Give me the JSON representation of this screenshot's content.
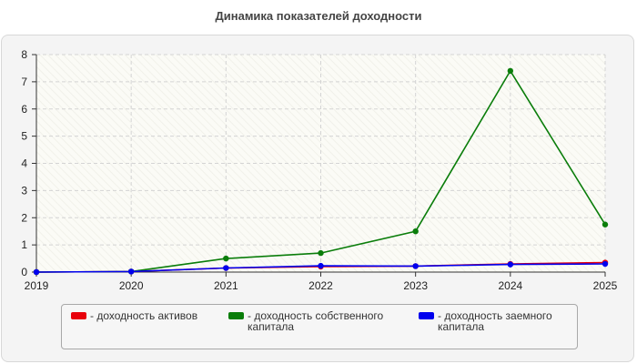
{
  "chart_data": {
    "type": "line",
    "title": "Динамика показателей доходности",
    "x": [
      "2019",
      "2020",
      "2021",
      "2022",
      "2023",
      "2024",
      "2025"
    ],
    "y_ticks": [
      "0",
      "1",
      "2",
      "3",
      "4",
      "5",
      "6",
      "7",
      "8"
    ],
    "ylim": [
      0,
      8
    ],
    "grid": true,
    "legend_position": "bottom",
    "series": [
      {
        "name": "- доходность активов",
        "color": "#e8000b",
        "values": [
          0,
          0.02,
          0.15,
          0.2,
          0.22,
          0.3,
          0.35
        ]
      },
      {
        "name": "- доходность собственного капитала",
        "color": "#0a7d0a",
        "values": [
          0,
          0.02,
          0.5,
          0.7,
          1.5,
          7.4,
          1.75
        ]
      },
      {
        "name": "- доходность заемного капитала",
        "color": "#0000ee",
        "values": [
          0,
          0.02,
          0.15,
          0.23,
          0.22,
          0.28,
          0.3
        ]
      }
    ]
  }
}
